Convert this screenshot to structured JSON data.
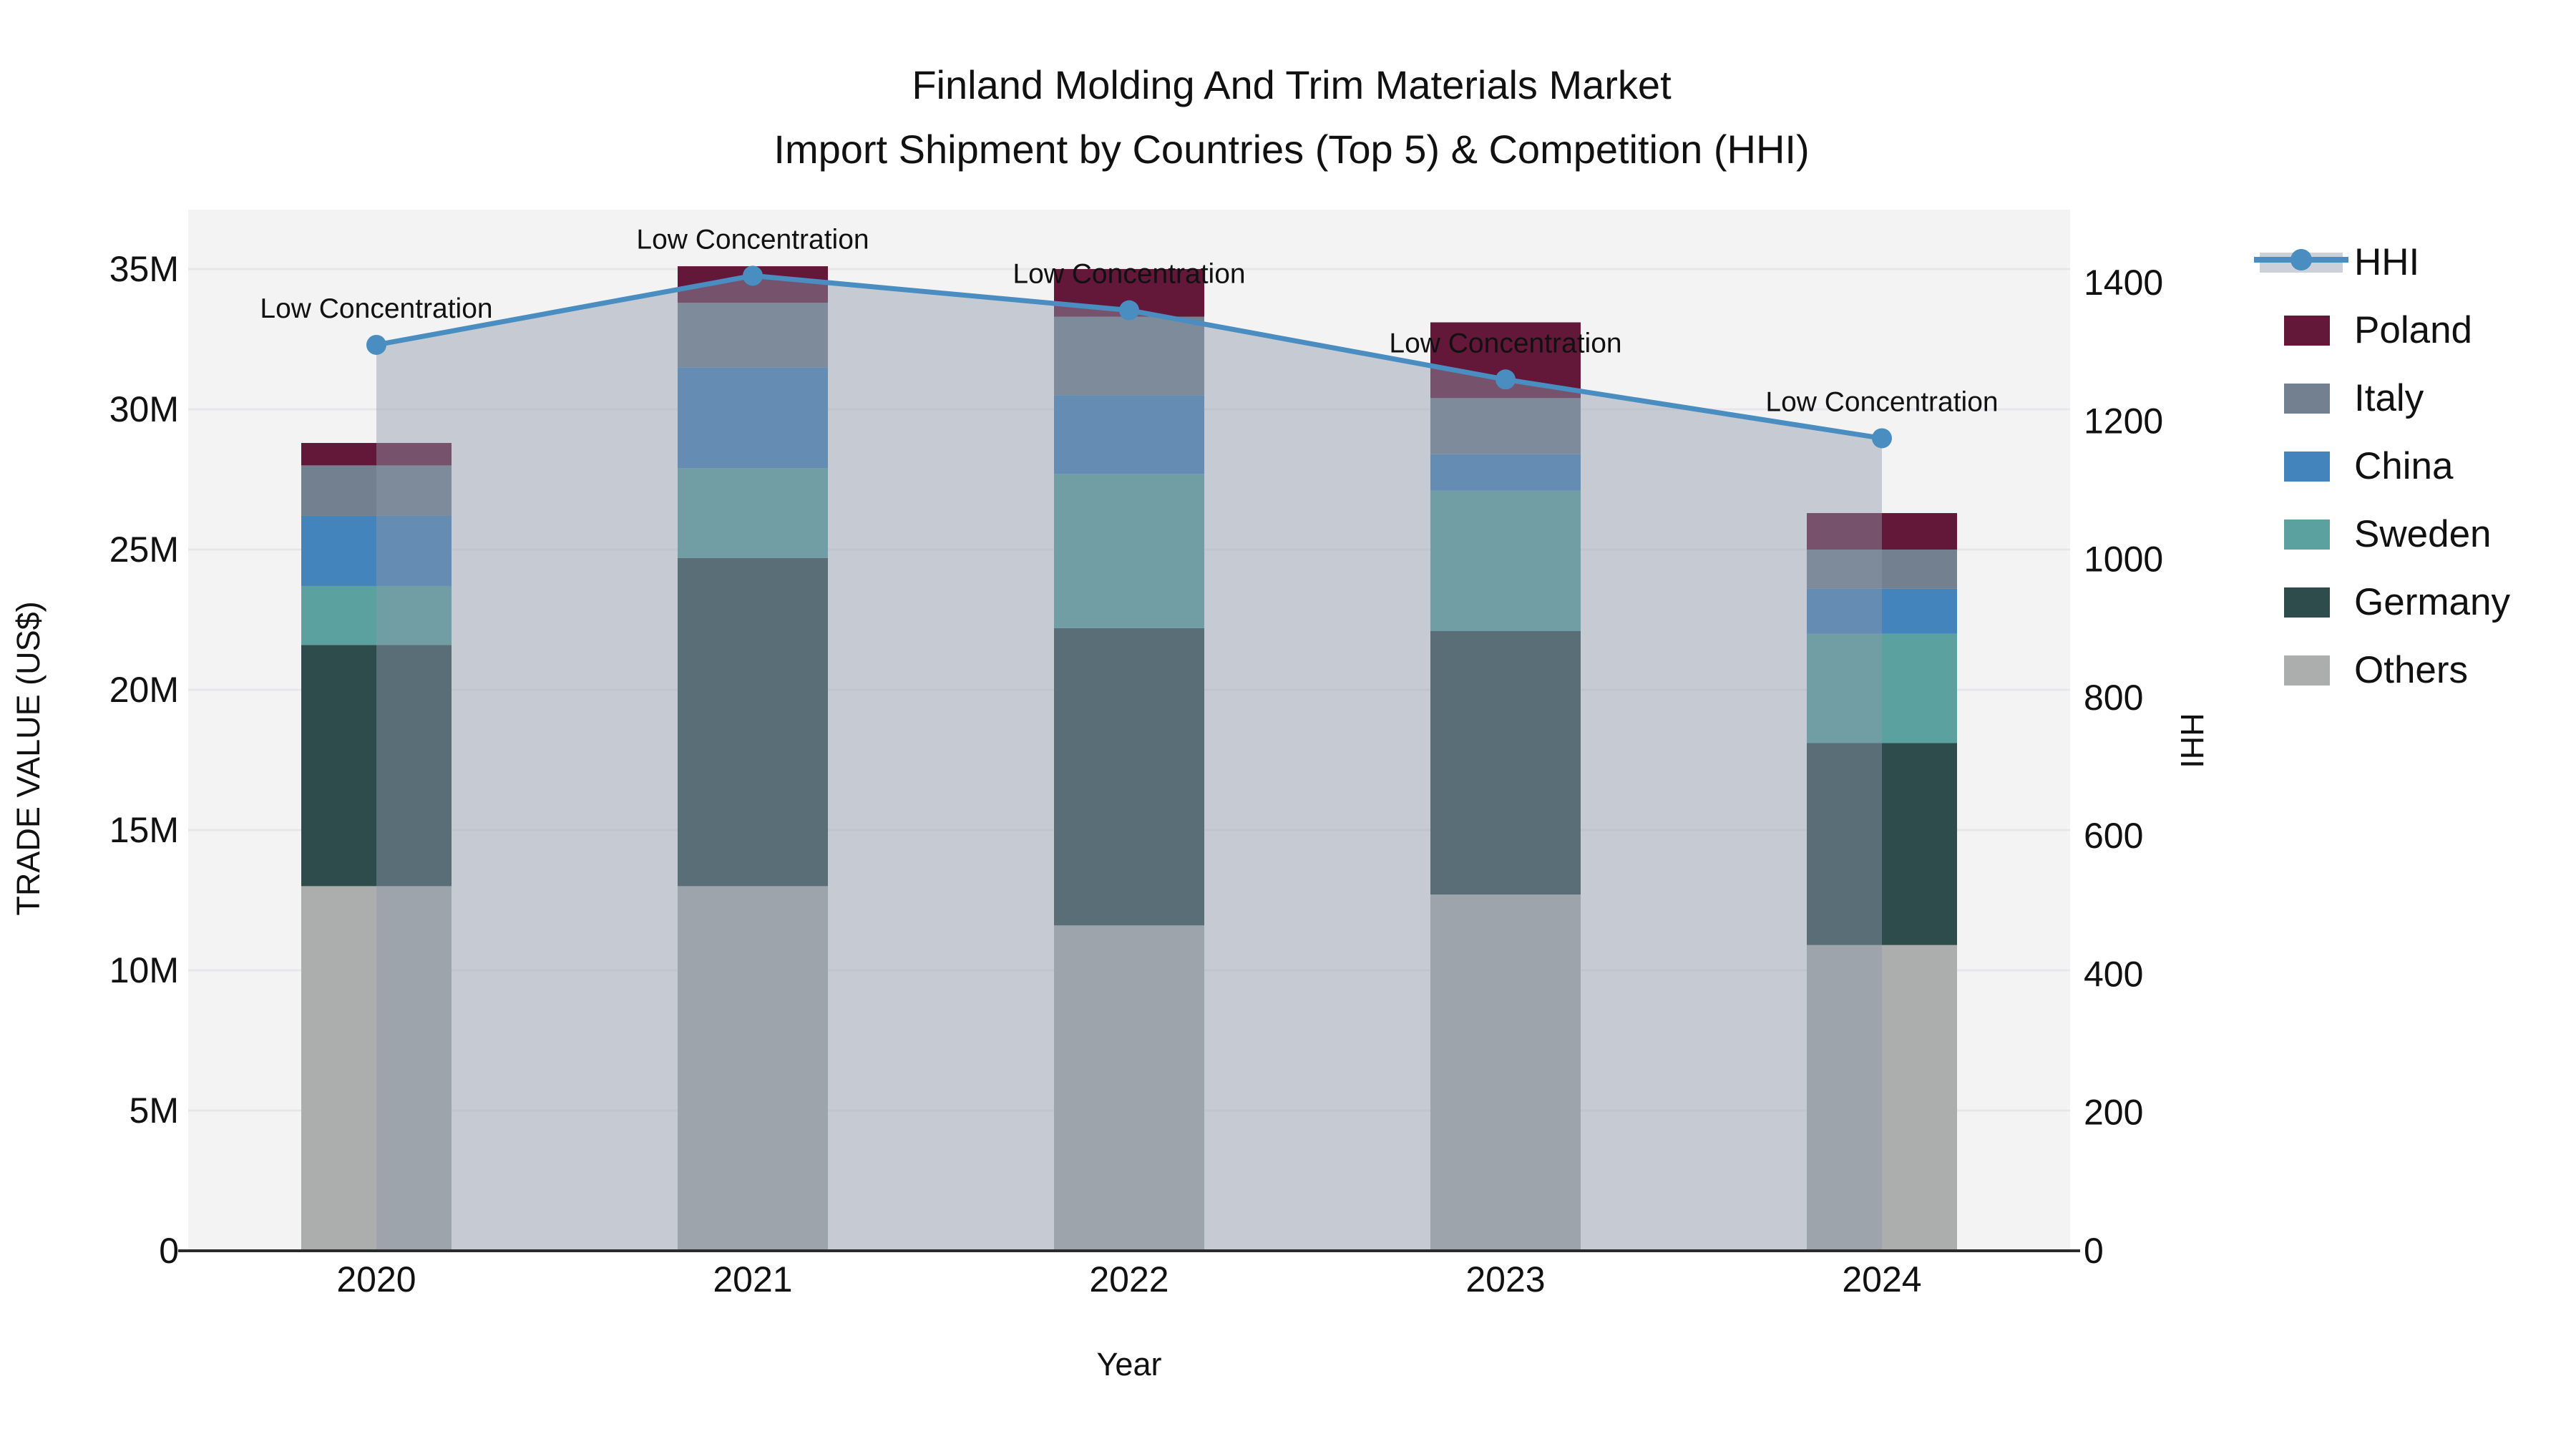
{
  "title": {
    "line1": "Finland Molding And Trim Materials Market",
    "line2": "Import Shipment by Countries (Top 5) & Competition (HHI)"
  },
  "axes": {
    "x": {
      "title": "Year",
      "categories": [
        "2020",
        "2021",
        "2022",
        "2023",
        "2024"
      ]
    },
    "y_left": {
      "title": "TRADE VALUE (US$)",
      "tick_labels": [
        "0",
        "5M",
        "10M",
        "15M",
        "20M",
        "25M",
        "30M",
        "35M"
      ],
      "tick_values_musd": [
        0,
        5,
        10,
        15,
        20,
        25,
        30,
        35
      ],
      "range_musd": [
        0,
        35
      ]
    },
    "y_right": {
      "title": "HHI",
      "tick_labels": [
        "0",
        "200",
        "400",
        "600",
        "800",
        "1000",
        "1200",
        "1400"
      ],
      "tick_values": [
        0,
        200,
        400,
        600,
        800,
        1000,
        1200,
        1400
      ],
      "range": [
        0,
        1400
      ]
    }
  },
  "chart_data": {
    "type": "composite",
    "subtypes": [
      "stacked-bar",
      "line",
      "area"
    ],
    "x_categories": [
      "2020",
      "2021",
      "2022",
      "2023",
      "2024"
    ],
    "bar_value_unit": "million US$",
    "bar_stack_order_bottom_to_top": [
      "Others",
      "Germany",
      "Sweden",
      "China",
      "Italy",
      "Poland"
    ],
    "bar_series": [
      {
        "name": "Poland",
        "color": "#63183a",
        "values_musd": [
          0.8,
          1.3,
          1.7,
          2.7,
          1.3
        ]
      },
      {
        "name": "Italy",
        "color": "#72808f",
        "values_musd": [
          1.8,
          2.3,
          2.8,
          2.0,
          1.4
        ]
      },
      {
        "name": "China",
        "color": "#4484bc",
        "values_musd": [
          2.5,
          3.6,
          2.8,
          1.3,
          1.6
        ]
      },
      {
        "name": "Sweden",
        "color": "#5aa19f",
        "values_musd": [
          2.1,
          3.2,
          5.5,
          5.0,
          3.9
        ]
      },
      {
        "name": "Germany",
        "color": "#2e4c4b",
        "values_musd": [
          8.6,
          11.7,
          10.6,
          9.4,
          7.2
        ]
      },
      {
        "name": "Others",
        "color": "#acaead",
        "values_musd": [
          13.0,
          13.0,
          11.6,
          12.7,
          10.9
        ]
      }
    ],
    "bar_totals_musd": [
      28.8,
      35.1,
      35.0,
      33.1,
      26.3
    ],
    "line_series": {
      "name": "HHI",
      "color": "#4a8dc0",
      "marker": "circle",
      "area_fill": "rgba(141,152,170,0.45)",
      "values": [
        1310,
        1410,
        1360,
        1260,
        1175
      ]
    },
    "annotations": [
      {
        "text": "Low Concentration",
        "x": "2020"
      },
      {
        "text": "Low Concentration",
        "x": "2021"
      },
      {
        "text": "Low Concentration",
        "x": "2022"
      },
      {
        "text": "Low Concentration",
        "x": "2023"
      },
      {
        "text": "Low Concentration",
        "x": "2024"
      }
    ],
    "legend_position": "right",
    "grid": "horizontal",
    "plot_background": "#f3f3f4",
    "grid_color": "#e7e7ea",
    "axis_line_color": "#2a2a2a"
  }
}
